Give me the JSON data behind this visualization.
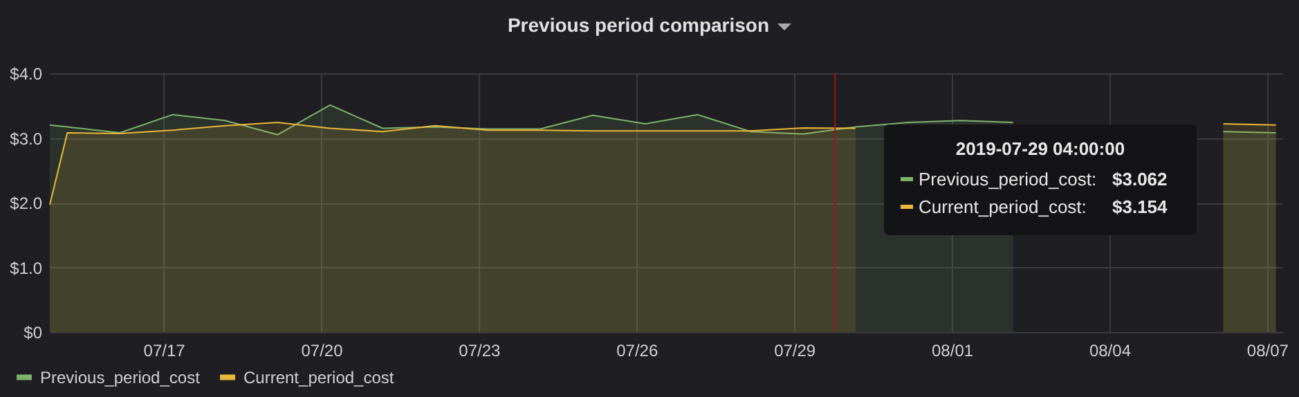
{
  "chart_data": {
    "type": "area",
    "title": "Previous period comparison",
    "x": [
      "2019-07-14T20:00",
      "2019-07-15T04:00",
      "2019-07-16T04:00",
      "2019-07-17T04:00",
      "2019-07-18T04:00",
      "2019-07-19T04:00",
      "2019-07-20T04:00",
      "2019-07-21T04:00",
      "2019-07-22T04:00",
      "2019-07-23T04:00",
      "2019-07-24T04:00",
      "2019-07-25T04:00",
      "2019-07-26T04:00",
      "2019-07-27T04:00",
      "2019-07-28T04:00",
      "2019-07-29T04:00",
      "2019-07-30T04:00",
      "2019-07-31T04:00",
      "2019-08-01T04:00",
      "2019-08-02T04:00",
      "2019-08-03T04:00",
      "2019-08-04T04:00",
      "2019-08-05T04:00",
      "2019-08-06T04:00",
      "2019-08-07T04:00"
    ],
    "series": [
      {
        "name": "Previous_period_cost",
        "color": "#7eb26d",
        "values": [
          3.2,
          3.17,
          3.08,
          3.36,
          3.27,
          3.05,
          3.51,
          3.15,
          3.17,
          3.14,
          3.14,
          3.35,
          3.22,
          3.36,
          3.1,
          3.062,
          3.17,
          3.24,
          3.27,
          3.24,
          null,
          null,
          null,
          3.1,
          3.08
        ]
      },
      {
        "name": "Current_period_cost",
        "color": "#eab839",
        "values": [
          1.97,
          3.08,
          3.07,
          3.12,
          3.19,
          3.24,
          3.15,
          3.1,
          3.19,
          3.12,
          3.12,
          3.11,
          3.11,
          3.11,
          3.11,
          3.154,
          3.15,
          null,
          null,
          null,
          null,
          null,
          null,
          3.22,
          3.2
        ]
      }
    ],
    "xlim": [
      "2019-07-14T20:00",
      "2019-08-07T07:00"
    ],
    "xticks": [
      {
        "value": "2019-07-17",
        "label": "07/17"
      },
      {
        "value": "2019-07-20",
        "label": "07/20"
      },
      {
        "value": "2019-07-23",
        "label": "07/23"
      },
      {
        "value": "2019-07-26",
        "label": "07/26"
      },
      {
        "value": "2019-07-29",
        "label": "07/29"
      },
      {
        "value": "2019-08-01",
        "label": "08/01"
      },
      {
        "value": "2019-08-04",
        "label": "08/04"
      },
      {
        "value": "2019-08-07",
        "label": "08/07"
      }
    ],
    "ylim": [
      0,
      4
    ],
    "yticks": [
      {
        "value": 0,
        "label": "$0"
      },
      {
        "value": 1,
        "label": "$1.0"
      },
      {
        "value": 2,
        "label": "$2.0"
      },
      {
        "value": 3,
        "label": "$3.0"
      },
      {
        "value": 4,
        "label": "$4.0"
      }
    ],
    "ref_lines": [
      {
        "axis": "x",
        "value": "2019-07-29T18:40",
        "color": "#a31515"
      }
    ],
    "grid": true,
    "legend": "bottom left",
    "marker": "none",
    "line_style": "solid",
    "annotations": [
      "2019-07-29 04:00:00",
      "Previous_period_cost:",
      "$3.062",
      "Current_period_cost:",
      "$3.154"
    ]
  }
}
